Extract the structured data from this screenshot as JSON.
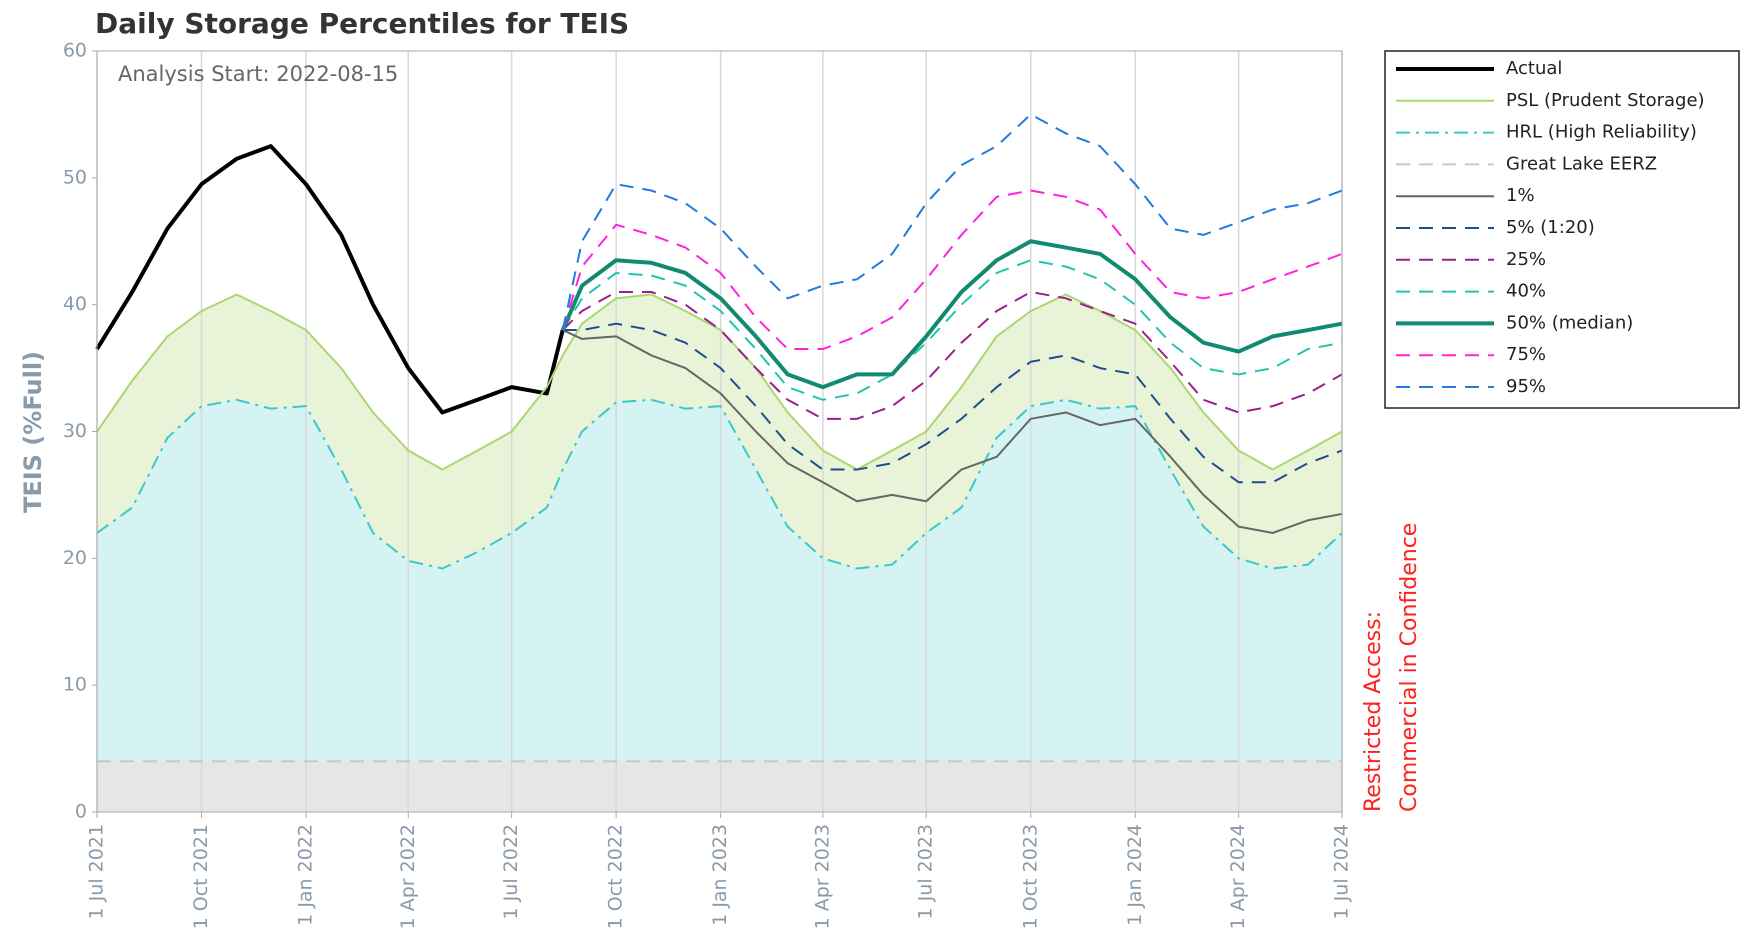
{
  "chart_data": {
    "type": "line",
    "title": "Daily Storage Percentiles for TEIS",
    "annotation": "Analysis Start:  2022-08-15",
    "side_note": [
      "Restricted Access:",
      "Commercial in Confidence"
    ],
    "ylabel": "TEIS (%Full)",
    "x": [
      "2021-07-01",
      "2021-08-01",
      "2021-09-01",
      "2021-10-01",
      "2021-11-01",
      "2021-12-01",
      "2022-01-01",
      "2022-02-01",
      "2022-03-01",
      "2022-04-01",
      "2022-05-01",
      "2022-06-01",
      "2022-07-01",
      "2022-08-01",
      "2022-08-15",
      "2022-09-01",
      "2022-10-01",
      "2022-11-01",
      "2022-12-01",
      "2023-01-01",
      "2023-02-01",
      "2023-03-01",
      "2023-04-01",
      "2023-05-01",
      "2023-06-01",
      "2023-07-01",
      "2023-08-01",
      "2023-09-01",
      "2023-10-01",
      "2023-11-01",
      "2023-12-01",
      "2024-01-01",
      "2024-02-01",
      "2024-03-01",
      "2024-04-01",
      "2024-05-01",
      "2024-06-01",
      "2024-07-01"
    ],
    "xlim": [
      "2021-07-01",
      "2024-07-01"
    ],
    "xticks": [
      {
        "value": "2021-07-01",
        "label": "1 Jul 2021"
      },
      {
        "value": "2021-10-01",
        "label": "1 Oct 2021"
      },
      {
        "value": "2022-01-01",
        "label": "1 Jan 2022"
      },
      {
        "value": "2022-04-01",
        "label": "1 Apr 2022"
      },
      {
        "value": "2022-07-01",
        "label": "1 Jul 2022"
      },
      {
        "value": "2022-10-01",
        "label": "1 Oct 2022"
      },
      {
        "value": "2023-01-01",
        "label": "1 Jan 2023"
      },
      {
        "value": "2023-04-01",
        "label": "1 Apr 2023"
      },
      {
        "value": "2023-07-01",
        "label": "1 Jul 2023"
      },
      {
        "value": "2023-10-01",
        "label": "1 Oct 2023"
      },
      {
        "value": "2024-01-01",
        "label": "1 Jan 2024"
      },
      {
        "value": "2024-04-01",
        "label": "1 Apr 2024"
      },
      {
        "value": "2024-07-01",
        "label": "1 Jul 2024"
      }
    ],
    "ylim": [
      0,
      60
    ],
    "yticks": [
      0,
      10,
      20,
      30,
      40,
      50,
      60
    ],
    "grid": true,
    "legend": "outside-right",
    "series": [
      {
        "name": "Actual",
        "color": "#000000",
        "width": 4,
        "dash": "solid",
        "values": [
          36.5,
          41,
          46,
          49.5,
          51.5,
          52.5,
          49.5,
          45.5,
          40,
          35,
          31.5,
          32.5,
          33.5,
          33,
          38,
          null,
          null,
          null,
          null,
          null,
          null,
          null,
          null,
          null,
          null,
          null,
          null,
          null,
          null,
          null,
          null,
          null,
          null,
          null,
          null,
          null,
          null,
          null
        ]
      },
      {
        "name": "PSL (Prudent Storage)",
        "color": "#a8d86e",
        "width": 2,
        "dash": "solid",
        "fill": "#e8f3d8",
        "values": [
          30,
          34,
          37.5,
          39.5,
          40.8,
          39.5,
          38,
          35,
          31.5,
          28.5,
          27,
          28.5,
          30,
          33.5,
          36,
          38.5,
          40.5,
          40.8,
          39.5,
          38,
          35,
          31.5,
          28.5,
          27,
          28.5,
          30,
          33.5,
          37.5,
          39.5,
          40.8,
          39.5,
          38,
          35,
          31.5,
          28.5,
          27,
          28.5,
          30
        ]
      },
      {
        "name": "HRL (High Reliability)",
        "color": "#3cc8c8",
        "width": 2,
        "dash": "dashdot",
        "fill": "#d6f3f4",
        "values": [
          22,
          24,
          29.5,
          32,
          32.5,
          31.8,
          32,
          27,
          22,
          19.8,
          19.2,
          20.5,
          22,
          24,
          27,
          30,
          32.3,
          32.5,
          31.8,
          32,
          27,
          22.5,
          20,
          19.2,
          19.5,
          22,
          24,
          29.5,
          32,
          32.5,
          31.8,
          32,
          27,
          22.5,
          20,
          19.2,
          19.5,
          22
        ]
      },
      {
        "name": "Great Lake EERZ",
        "color": "#c8c8c8",
        "width": 2,
        "dash": "dash",
        "fill": "#e6e6e8",
        "values": [
          4,
          4,
          4,
          4,
          4,
          4,
          4,
          4,
          4,
          4,
          4,
          4,
          4,
          4,
          4,
          4,
          4,
          4,
          4,
          4,
          4,
          4,
          4,
          4,
          4,
          4,
          4,
          4,
          4,
          4,
          4,
          4,
          4,
          4,
          4,
          4,
          4,
          4
        ]
      },
      {
        "name": "1%",
        "color": "#666666",
        "width": 2,
        "dash": "solid",
        "values": [
          null,
          null,
          null,
          null,
          null,
          null,
          null,
          null,
          null,
          null,
          null,
          null,
          null,
          null,
          38,
          37.3,
          37.5,
          36,
          35,
          33,
          30,
          27.5,
          26,
          24.5,
          25,
          24.5,
          27,
          28,
          31,
          31.5,
          30.5,
          31,
          28,
          25,
          22.5,
          22,
          23,
          23.5
        ]
      },
      {
        "name": "5% (1:20)",
        "color": "#1f4e8c",
        "width": 2,
        "dash": "dash",
        "values": [
          null,
          null,
          null,
          null,
          null,
          null,
          null,
          null,
          null,
          null,
          null,
          null,
          null,
          null,
          38,
          38,
          38.5,
          38,
          37,
          35,
          32,
          29,
          27,
          27,
          27.5,
          29,
          31,
          33.5,
          35.5,
          36,
          35,
          34.5,
          31,
          28,
          26,
          26,
          27.5,
          28.5
        ]
      },
      {
        "name": "25%",
        "color": "#9b1f8c",
        "width": 2,
        "dash": "dash",
        "values": [
          null,
          null,
          null,
          null,
          null,
          null,
          null,
          null,
          null,
          null,
          null,
          null,
          null,
          null,
          38,
          39.5,
          41,
          41,
          40,
          38,
          35,
          32.5,
          31,
          31,
          32,
          34,
          37,
          39.5,
          41,
          40.5,
          39.5,
          38.5,
          35.5,
          32.5,
          31.5,
          32,
          33,
          34.5
        ]
      },
      {
        "name": "40%",
        "color": "#22c4b0",
        "width": 2,
        "dash": "dash",
        "values": [
          null,
          null,
          null,
          null,
          null,
          null,
          null,
          null,
          null,
          null,
          null,
          null,
          null,
          null,
          38,
          40.5,
          42.5,
          42.3,
          41.5,
          39.5,
          36.5,
          33.5,
          32.5,
          33,
          34.5,
          37,
          40,
          42.5,
          43.5,
          43,
          42,
          40,
          37,
          35,
          34.5,
          35,
          36.5,
          37
        ]
      },
      {
        "name": "50% (median)",
        "color": "#128a70",
        "width": 4,
        "dash": "solid",
        "values": [
          null,
          null,
          null,
          null,
          null,
          null,
          null,
          null,
          null,
          null,
          null,
          null,
          null,
          null,
          38,
          41.5,
          43.5,
          43.3,
          42.5,
          40.5,
          37.5,
          34.5,
          33.5,
          34.5,
          34.5,
          37.5,
          41,
          43.5,
          45,
          44.5,
          44,
          42,
          39,
          37,
          36.3,
          37.5,
          38,
          38.5
        ]
      },
      {
        "name": "75%",
        "color": "#ff22dd",
        "width": 2,
        "dash": "dash",
        "values": [
          null,
          null,
          null,
          null,
          null,
          null,
          null,
          null,
          null,
          null,
          null,
          null,
          null,
          null,
          38,
          43,
          46.3,
          45.5,
          44.5,
          42.5,
          39,
          36.5,
          36.5,
          37.5,
          39,
          42,
          45.5,
          48.5,
          49,
          48.5,
          47.5,
          44,
          41,
          40.5,
          41,
          42,
          43,
          44
        ]
      },
      {
        "name": "95%",
        "color": "#1f7be0",
        "width": 2,
        "dash": "dash",
        "values": [
          null,
          null,
          null,
          null,
          null,
          null,
          null,
          null,
          null,
          null,
          null,
          null,
          null,
          null,
          38,
          45,
          49.5,
          49,
          48,
          46,
          43,
          40.5,
          41.5,
          42,
          44,
          48,
          51,
          52.5,
          55,
          53.5,
          52.5,
          49.5,
          46,
          45.5,
          46.5,
          47.5,
          48,
          49
        ]
      }
    ]
  }
}
